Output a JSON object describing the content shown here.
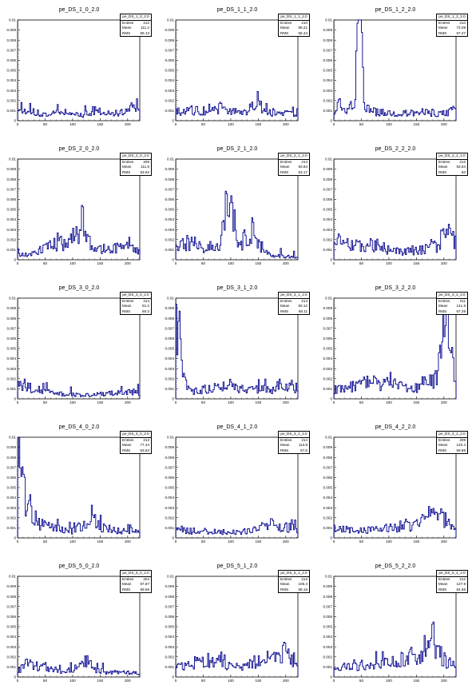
{
  "style": {
    "line_color": "#00008b",
    "frame_color": "#000000",
    "background": "#ffffff"
  },
  "stat_labels": {
    "entries": "Entries",
    "mean": "Mean",
    "rms": "RMS"
  },
  "chart_data": [
    {
      "type": "line",
      "title": "pe_DS_1_0_2.0",
      "stats": {
        "name": "pe_DS_1_0_2.0",
        "entries": "212",
        "mean": "111.4",
        "rms": "59.13"
      },
      "xlim": [
        0,
        222
      ],
      "ylim": [
        0,
        0.01
      ],
      "x_ticks": [
        "0",
        "50",
        "100",
        "150",
        "200"
      ],
      "y_ticks": [
        "0",
        "0.001",
        "0.002",
        "0.003",
        "0.004",
        "0.005",
        "0.006",
        "0.007",
        "0.008",
        "0.009",
        "0.01"
      ],
      "profile": [
        [
          0,
          0.0006
        ],
        [
          5,
          0.0012
        ],
        [
          15,
          0.0008
        ],
        [
          40,
          0.0005
        ],
        [
          80,
          0.0007
        ],
        [
          120,
          0.0005
        ],
        [
          140,
          0.0009
        ],
        [
          170,
          0.0006
        ],
        [
          200,
          0.0007
        ],
        [
          212,
          0.0018
        ],
        [
          220,
          0.0006
        ]
      ]
    },
    {
      "type": "line",
      "title": "pe_DS_1_1_2.0",
      "stats": {
        "name": "pe_DS_1_1_2.0",
        "entries": "210",
        "mean": "89.21",
        "rms": "56.44"
      },
      "xlim": [
        0,
        222
      ],
      "ylim": [
        0,
        0.01
      ],
      "x_ticks": [
        "0",
        "50",
        "100",
        "150",
        "200"
      ],
      "y_ticks": [
        "0",
        "0.001",
        "0.002",
        "0.003",
        "0.004",
        "0.005",
        "0.006",
        "0.007",
        "0.008",
        "0.009",
        "0.01"
      ],
      "profile": [
        [
          0,
          0.0007
        ],
        [
          20,
          0.0009
        ],
        [
          60,
          0.0008
        ],
        [
          80,
          0.0011
        ],
        [
          100,
          0.0008
        ],
        [
          120,
          0.0006
        ],
        [
          140,
          0.0012
        ],
        [
          150,
          0.0018
        ],
        [
          160,
          0.0008
        ],
        [
          200,
          0.0006
        ],
        [
          220,
          0.0005
        ]
      ]
    },
    {
      "type": "line",
      "title": "pe_DS_1_2_2.0",
      "stats": {
        "name": "pe_DS_1_2_2.0",
        "entries": "210",
        "mean": "73.09",
        "rms": "57.27"
      },
      "xlim": [
        0,
        222
      ],
      "ylim": [
        0,
        0.01
      ],
      "x_ticks": [
        "0",
        "50",
        "100",
        "150",
        "200"
      ],
      "y_ticks": [
        "0",
        "0.001",
        "0.002",
        "0.003",
        "0.004",
        "0.005",
        "0.006",
        "0.007",
        "0.008",
        "0.009",
        "0.01"
      ],
      "profile": [
        [
          0,
          0.0006
        ],
        [
          8,
          0.0015
        ],
        [
          20,
          0.0008
        ],
        [
          30,
          0.0012
        ],
        [
          38,
          0.0008
        ],
        [
          44,
          0.0075
        ],
        [
          46,
          0.0115
        ],
        [
          50,
          0.0115
        ],
        [
          52,
          0.006
        ],
        [
          55,
          0.001
        ],
        [
          80,
          0.0007
        ],
        [
          120,
          0.0006
        ],
        [
          160,
          0.0007
        ],
        [
          200,
          0.0006
        ],
        [
          220,
          0.0009
        ]
      ]
    },
    {
      "type": "line",
      "title": "pe_DS_2_0_2.0",
      "stats": {
        "name": "pe_DS_2_0_2.0",
        "entries": "209",
        "mean": "111.9",
        "rms": "53.62"
      },
      "xlim": [
        0,
        222
      ],
      "ylim": [
        0,
        0.01
      ],
      "x_ticks": [
        "0",
        "50",
        "100",
        "150",
        "200"
      ],
      "y_ticks": [
        "0",
        "0.001",
        "0.002",
        "0.003",
        "0.004",
        "0.005",
        "0.006",
        "0.007",
        "0.008",
        "0.009",
        "0.01"
      ],
      "profile": [
        [
          0,
          0.0004
        ],
        [
          30,
          0.0005
        ],
        [
          60,
          0.0012
        ],
        [
          80,
          0.0014
        ],
        [
          100,
          0.0018
        ],
        [
          112,
          0.0026
        ],
        [
          118,
          0.0036
        ],
        [
          124,
          0.0018
        ],
        [
          140,
          0.0008
        ],
        [
          170,
          0.0009
        ],
        [
          200,
          0.0012
        ],
        [
          220,
          0.0008
        ]
      ]
    },
    {
      "type": "line",
      "title": "pe_DS_2_1_2.0",
      "stats": {
        "name": "pe_DS_2_1_2.0",
        "entries": "214",
        "mean": "93.84",
        "rms": "53.17"
      },
      "xlim": [
        0,
        222
      ],
      "ylim": [
        0,
        0.01
      ],
      "x_ticks": [
        "0",
        "50",
        "100",
        "150",
        "200"
      ],
      "y_ticks": [
        "0",
        "0.001",
        "0.002",
        "0.003",
        "0.004",
        "0.005",
        "0.006",
        "0.007",
        "0.008",
        "0.009",
        "0.01"
      ],
      "profile": [
        [
          0,
          0.0009
        ],
        [
          15,
          0.0014
        ],
        [
          30,
          0.0015
        ],
        [
          50,
          0.0009
        ],
        [
          70,
          0.0012
        ],
        [
          80,
          0.0008
        ],
        [
          88,
          0.004
        ],
        [
          95,
          0.0045
        ],
        [
          100,
          0.0048
        ],
        [
          105,
          0.004
        ],
        [
          112,
          0.0012
        ],
        [
          130,
          0.0016
        ],
        [
          140,
          0.0028
        ],
        [
          150,
          0.0014
        ],
        [
          170,
          0.0004
        ],
        [
          200,
          0.0003
        ],
        [
          220,
          0.0002
        ]
      ]
    },
    {
      "type": "line",
      "title": "pe_DS_2_2_2.0",
      "stats": {
        "name": "pe_DS_2_2_2.0",
        "entries": "212",
        "mean": "93.84",
        "rms": "63"
      },
      "xlim": [
        0,
        222
      ],
      "ylim": [
        0,
        0.01
      ],
      "x_ticks": [
        "0",
        "50",
        "100",
        "150",
        "200"
      ],
      "y_ticks": [
        "0",
        "0.001",
        "0.002",
        "0.003",
        "0.004",
        "0.005",
        "0.006",
        "0.007",
        "0.008",
        "0.009",
        "0.01"
      ],
      "profile": [
        [
          0,
          0.0014
        ],
        [
          15,
          0.0016
        ],
        [
          40,
          0.0012
        ],
        [
          60,
          0.001
        ],
        [
          80,
          0.0014
        ],
        [
          100,
          0.0008
        ],
        [
          130,
          0.0007
        ],
        [
          160,
          0.0008
        ],
        [
          190,
          0.0012
        ],
        [
          212,
          0.0028
        ],
        [
          220,
          0.0015
        ]
      ]
    },
    {
      "type": "line",
      "title": "pe_DS_3_0_2.0",
      "stats": {
        "name": "pe_DS_3_0_2.0",
        "entries": "214",
        "mean": "91.2",
        "rms": "60.3"
      },
      "xlim": [
        0,
        222
      ],
      "ylim": [
        0,
        0.01
      ],
      "x_ticks": [
        "0",
        "50",
        "100",
        "150",
        "200"
      ],
      "y_ticks": [
        "0",
        "0.001",
        "0.002",
        "0.003",
        "0.004",
        "0.005",
        "0.006",
        "0.007",
        "0.008",
        "0.009",
        "0.01"
      ],
      "profile": [
        [
          0,
          0.0016
        ],
        [
          10,
          0.0012
        ],
        [
          30,
          0.0008
        ],
        [
          60,
          0.0006
        ],
        [
          90,
          0.0004
        ],
        [
          120,
          0.0003
        ],
        [
          150,
          0.0004
        ],
        [
          180,
          0.0005
        ],
        [
          210,
          0.0006
        ],
        [
          220,
          0.0005
        ]
      ]
    },
    {
      "type": "line",
      "title": "pe_DS_3_1_2.0",
      "stats": {
        "name": "pe_DS_3_1_2.0",
        "entries": "214",
        "mean": "50.12",
        "rms": "68.11"
      },
      "xlim": [
        0,
        222
      ],
      "ylim": [
        0,
        0.01
      ],
      "x_ticks": [
        "0",
        "50",
        "100",
        "150",
        "200"
      ],
      "y_ticks": [
        "0",
        "0.001",
        "0.002",
        "0.003",
        "0.004",
        "0.005",
        "0.006",
        "0.007",
        "0.008",
        "0.009",
        "0.01"
      ],
      "profile": [
        [
          0,
          0.0065
        ],
        [
          4,
          0.0072
        ],
        [
          8,
          0.0045
        ],
        [
          12,
          0.0025
        ],
        [
          18,
          0.0012
        ],
        [
          30,
          0.0006
        ],
        [
          60,
          0.0009
        ],
        [
          100,
          0.0009
        ],
        [
          140,
          0.0008
        ],
        [
          180,
          0.0008
        ],
        [
          210,
          0.0011
        ],
        [
          220,
          0.0009
        ]
      ]
    },
    {
      "type": "line",
      "title": "pe_DS_3_2_2.0",
      "stats": {
        "name": "pe_DS_3_2_2.0",
        "entries": "211",
        "mean": "141.9",
        "rms": "67.29"
      },
      "xlim": [
        0,
        222
      ],
      "ylim": [
        0,
        0.01
      ],
      "x_ticks": [
        "0",
        "50",
        "100",
        "150",
        "200"
      ],
      "y_ticks": [
        "0",
        "0.001",
        "0.002",
        "0.003",
        "0.004",
        "0.005",
        "0.006",
        "0.007",
        "0.008",
        "0.009",
        "0.01"
      ],
      "profile": [
        [
          0,
          0.0008
        ],
        [
          30,
          0.0009
        ],
        [
          50,
          0.0014
        ],
        [
          80,
          0.0013
        ],
        [
          110,
          0.0012
        ],
        [
          140,
          0.0008
        ],
        [
          170,
          0.0012
        ],
        [
          185,
          0.0018
        ],
        [
          195,
          0.0035
        ],
        [
          200,
          0.0075
        ],
        [
          205,
          0.0095
        ],
        [
          210,
          0.0045
        ],
        [
          216,
          0.0035
        ],
        [
          220,
          0.0015
        ]
      ]
    },
    {
      "type": "line",
      "title": "pe_DS_4_0_2.0",
      "stats": {
        "name": "pe_DS_4_0_2.0",
        "entries": "213",
        "mean": "77.44",
        "rms": "63.64"
      },
      "xlim": [
        0,
        222
      ],
      "ylim": [
        0,
        0.01
      ],
      "x_ticks": [
        "0",
        "50",
        "100",
        "150",
        "200"
      ],
      "y_ticks": [
        "0",
        "0.001",
        "0.002",
        "0.003",
        "0.004",
        "0.005",
        "0.006",
        "0.007",
        "0.008",
        "0.009",
        "0.01"
      ],
      "profile": [
        [
          0,
          0.007
        ],
        [
          3,
          0.0085
        ],
        [
          8,
          0.005
        ],
        [
          15,
          0.0035
        ],
        [
          25,
          0.002
        ],
        [
          40,
          0.0012
        ],
        [
          70,
          0.0008
        ],
        [
          100,
          0.0006
        ],
        [
          125,
          0.0012
        ],
        [
          135,
          0.0016
        ],
        [
          150,
          0.001
        ],
        [
          180,
          0.0006
        ],
        [
          210,
          0.0006
        ],
        [
          220,
          0.0005
        ]
      ]
    },
    {
      "type": "line",
      "title": "pe_DS_4_1_2.0",
      "stats": {
        "name": "pe_DS_4_1_2.0",
        "entries": "214",
        "mean": "113.8",
        "rms": "67.6"
      },
      "xlim": [
        0,
        222
      ],
      "ylim": [
        0,
        0.01
      ],
      "x_ticks": [
        "0",
        "50",
        "100",
        "150",
        "200"
      ],
      "y_ticks": [
        "0",
        "0.001",
        "0.002",
        "0.003",
        "0.004",
        "0.005",
        "0.006",
        "0.007",
        "0.008",
        "0.009",
        "0.01"
      ],
      "profile": [
        [
          0,
          0.0008
        ],
        [
          30,
          0.0006
        ],
        [
          60,
          0.0006
        ],
        [
          90,
          0.0005
        ],
        [
          120,
          0.0005
        ],
        [
          150,
          0.0008
        ],
        [
          175,
          0.0012
        ],
        [
          200,
          0.0009
        ],
        [
          220,
          0.0008
        ]
      ]
    },
    {
      "type": "line",
      "title": "pe_DS_4_2_2.0",
      "stats": {
        "name": "pe_DS_4_2_2.0",
        "entries": "209",
        "mean": "120.4",
        "rms": "59.88"
      },
      "xlim": [
        0,
        222
      ],
      "ylim": [
        0,
        0.01
      ],
      "x_ticks": [
        "0",
        "50",
        "100",
        "150",
        "200"
      ],
      "y_ticks": [
        "0",
        "0.001",
        "0.002",
        "0.003",
        "0.004",
        "0.005",
        "0.006",
        "0.007",
        "0.008",
        "0.009",
        "0.01"
      ],
      "profile": [
        [
          0,
          0.0008
        ],
        [
          40,
          0.0006
        ],
        [
          80,
          0.0008
        ],
        [
          120,
          0.0009
        ],
        [
          150,
          0.0012
        ],
        [
          170,
          0.0018
        ],
        [
          185,
          0.0022
        ],
        [
          200,
          0.0016
        ],
        [
          215,
          0.001
        ],
        [
          220,
          0.0008
        ]
      ]
    },
    {
      "type": "line",
      "title": "pe_DS_5_0_2.0",
      "stats": {
        "name": "pe_DS_5_0_2.0",
        "entries": "204",
        "mean": "97.87",
        "rms": "59.65"
      },
      "xlim": [
        0,
        222
      ],
      "ylim": [
        0,
        0.01
      ],
      "x_ticks": [
        "0",
        "50",
        "100",
        "150",
        "200"
      ],
      "y_ticks": [
        "0",
        "0.001",
        "0.002",
        "0.003",
        "0.004",
        "0.005",
        "0.006",
        "0.007",
        "0.008",
        "0.009",
        "0.01"
      ],
      "profile": [
        [
          0,
          0.0005
        ],
        [
          20,
          0.0012
        ],
        [
          40,
          0.0009
        ],
        [
          60,
          0.0006
        ],
        [
          90,
          0.0005
        ],
        [
          110,
          0.0008
        ],
        [
          125,
          0.0014
        ],
        [
          135,
          0.0007
        ],
        [
          160,
          0.0004
        ],
        [
          190,
          0.0004
        ],
        [
          220,
          0.0003
        ]
      ]
    },
    {
      "type": "line",
      "title": "pe_DS_5_1_2.0",
      "stats": {
        "name": "pe_DS_5_1_2.0",
        "entries": "213",
        "mean": "106.3",
        "rms": "68.16"
      },
      "xlim": [
        0,
        222
      ],
      "ylim": [
        0,
        0.01
      ],
      "x_ticks": [
        "0",
        "50",
        "100",
        "150",
        "200"
      ],
      "y_ticks": [
        "0",
        "0.001",
        "0.002",
        "0.003",
        "0.004",
        "0.005",
        "0.006",
        "0.007",
        "0.008",
        "0.009",
        "0.01"
      ],
      "profile": [
        [
          0,
          0.0008
        ],
        [
          30,
          0.0012
        ],
        [
          60,
          0.0014
        ],
        [
          80,
          0.0018
        ],
        [
          100,
          0.0008
        ],
        [
          130,
          0.0009
        ],
        [
          160,
          0.0016
        ],
        [
          190,
          0.0022
        ],
        [
          210,
          0.0018
        ],
        [
          220,
          0.0012
        ]
      ]
    },
    {
      "type": "line",
      "title": "pe_DS_5_2_2.0",
      "stats": {
        "name": "pe_DS_5_2_2.0",
        "entries": "212",
        "mean": "127.9",
        "rms": "64.68"
      },
      "xlim": [
        0,
        222
      ],
      "ylim": [
        0,
        0.01
      ],
      "x_ticks": [
        "0",
        "50",
        "100",
        "150",
        "200"
      ],
      "y_ticks": [
        "0",
        "0.001",
        "0.002",
        "0.003",
        "0.004",
        "0.005",
        "0.006",
        "0.007",
        "0.008",
        "0.009",
        "0.01"
      ],
      "profile": [
        [
          0,
          0.0006
        ],
        [
          40,
          0.0009
        ],
        [
          80,
          0.0012
        ],
        [
          120,
          0.0014
        ],
        [
          150,
          0.0018
        ],
        [
          170,
          0.0028
        ],
        [
          178,
          0.0042
        ],
        [
          190,
          0.002
        ],
        [
          210,
          0.0012
        ],
        [
          220,
          0.0009
        ]
      ]
    }
  ]
}
